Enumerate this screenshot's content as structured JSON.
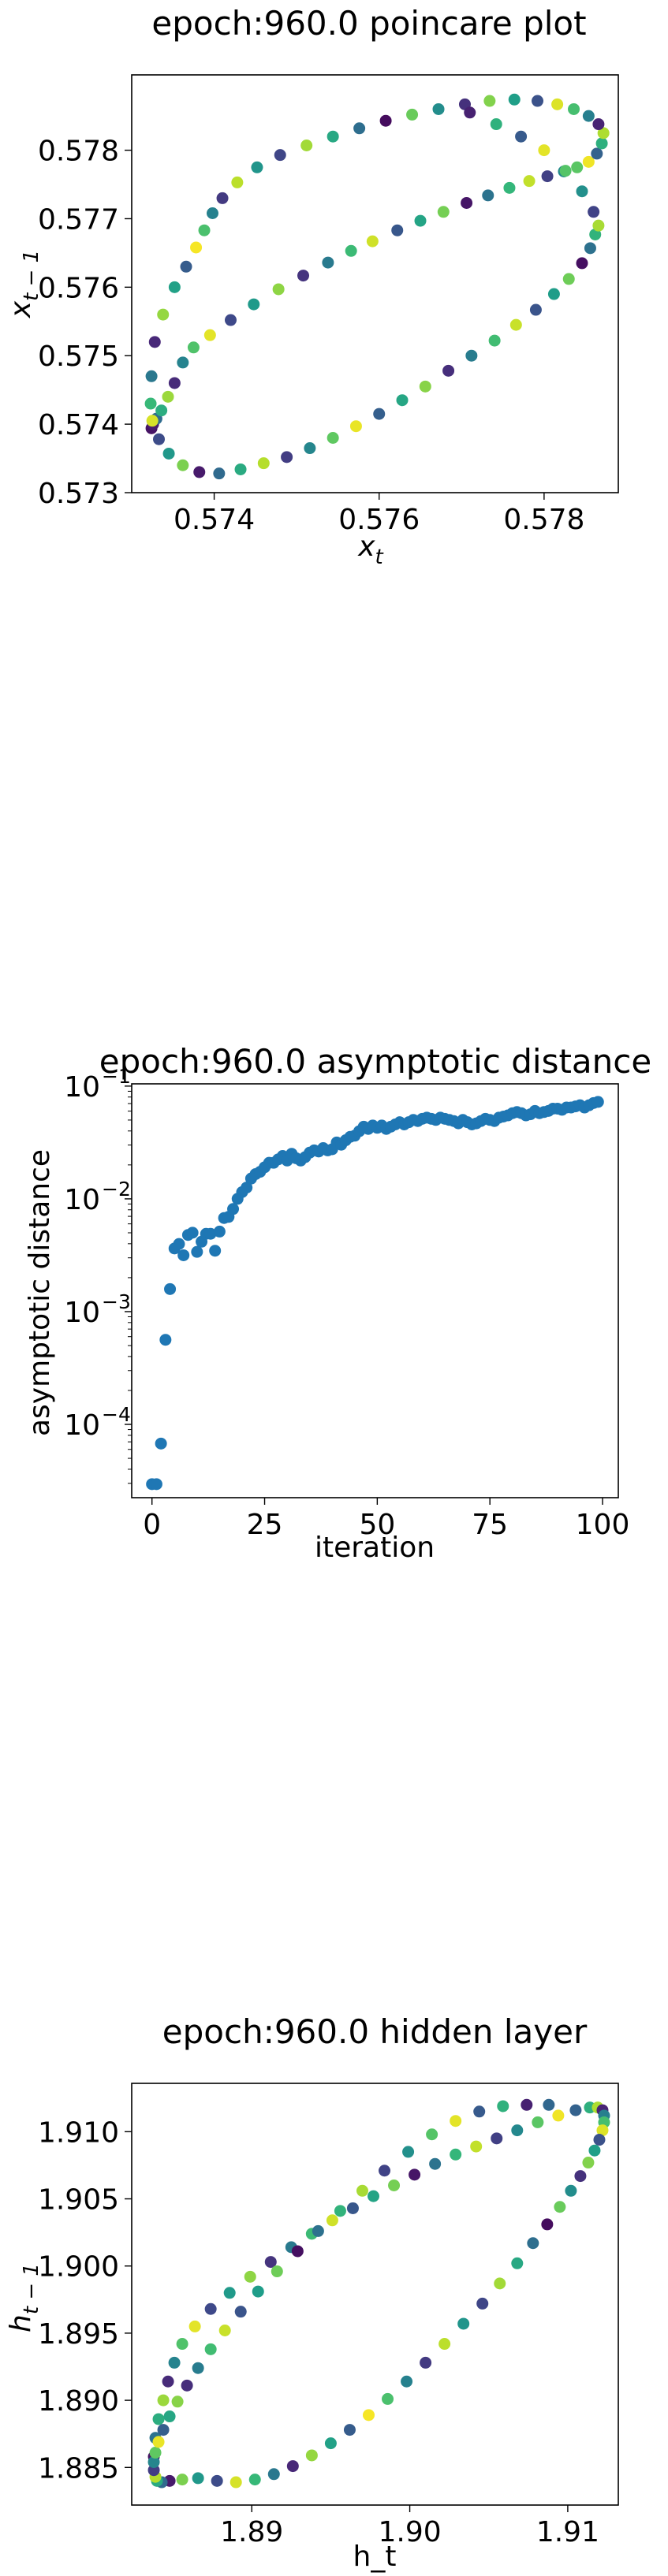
{
  "chart_data": [
    {
      "type": "scatter",
      "title": "epoch:960.0 poincare plot",
      "xlabel": "x_t",
      "ylabel": "x_{t-1}",
      "xlim": [
        0.573,
        0.5789
      ],
      "ylim": [
        0.573,
        0.5791
      ],
      "xticks": [
        0.574,
        0.576,
        0.578
      ],
      "xtick_labels": [
        "0.574",
        "0.576",
        "0.578"
      ],
      "yticks": [
        0.573,
        0.574,
        0.575,
        0.576,
        0.577,
        0.578
      ],
      "ytick_labels": [
        "0.573",
        "0.574",
        "0.575",
        "0.576",
        "0.577",
        "0.578"
      ],
      "grid": false,
      "colormap": "viridis",
      "colors": {
        "low": "#440154",
        "mid": "#21918c",
        "high": "#fde725"
      },
      "series": [
        {
          "x": [
            0.57324,
            0.57326,
            0.5733,
            0.57336,
            0.57344,
            0.57352,
            0.57362,
            0.57375,
            0.57395,
            0.5742,
            0.57448,
            0.57478,
            0.57508,
            0.57538,
            0.57566,
            0.57592,
            0.57622,
            0.5765,
            0.57678,
            0.57706,
            0.57732,
            0.57758,
            0.57782,
            0.57804,
            0.57824,
            0.5784,
            0.57854,
            0.57864,
            0.5787,
            0.57872,
            0.57866,
            0.57854,
            0.57836,
            0.57816,
            0.57792,
            0.57764,
            0.57734,
            0.57704,
            0.57672,
            0.5764,
            0.57608,
            0.57576,
            0.57544,
            0.57512,
            0.5748,
            0.57452,
            0.57428,
            0.5741,
            0.57398,
            0.57388,
            0.57378,
            0.57366,
            0.57352,
            0.57338,
            0.57328,
            0.57324,
            0.57323,
            0.57325,
            0.57333,
            0.57345,
            0.57362,
            0.57382,
            0.57406,
            0.57432,
            0.5746,
            0.57488,
            0.57516,
            0.57544,
            0.57572,
            0.576,
            0.57628,
            0.57656,
            0.57684,
            0.57712,
            0.5774,
            0.57766,
            0.5779,
            0.57812,
            0.5783,
            0.57846,
            0.57856,
            0.57862,
            0.57866,
            0.5786,
            0.57846,
            0.57826,
            0.578,
            0.57772,
            0.57742,
            0.5771
          ],
          "y": [
            0.57394,
            0.574,
            0.57408,
            0.5742,
            0.5744,
            0.5746,
            0.5749,
            0.57512,
            0.5753,
            0.57552,
            0.57575,
            0.57597,
            0.57617,
            0.57636,
            0.57653,
            0.57667,
            0.57683,
            0.57697,
            0.5771,
            0.57723,
            0.57734,
            0.57745,
            0.57755,
            0.57762,
            0.57769,
            0.57775,
            0.57783,
            0.57795,
            0.5781,
            0.57825,
            0.57838,
            0.5785,
            0.5786,
            0.57867,
            0.57872,
            0.57874,
            0.57872,
            0.57867,
            0.5786,
            0.57852,
            0.57843,
            0.57832,
            0.5782,
            0.57807,
            0.57793,
            0.57775,
            0.57753,
            0.5773,
            0.57708,
            0.57683,
            0.57658,
            0.5763,
            0.576,
            0.5756,
            0.5752,
            0.5747,
            0.5743,
            0.57405,
            0.57378,
            0.57357,
            0.5734,
            0.5733,
            0.57328,
            0.57334,
            0.57343,
            0.57352,
            0.57365,
            0.5738,
            0.57397,
            0.57415,
            0.57435,
            0.57455,
            0.57478,
            0.575,
            0.57522,
            0.57545,
            0.57567,
            0.5759,
            0.57612,
            0.57635,
            0.57657,
            0.57677,
            0.5769,
            0.5771,
            0.5774,
            0.5777,
            0.578,
            0.5782,
            0.57838,
            0.57855
          ],
          "c": [
            0.05,
            0.08,
            0.35,
            0.62,
            0.85,
            0.12,
            0.45,
            0.72,
            0.96,
            0.22,
            0.54,
            0.83,
            0.15,
            0.41,
            0.68,
            0.93,
            0.27,
            0.58,
            0.79,
            0.06,
            0.38,
            0.66,
            0.91,
            0.19,
            0.47,
            0.74,
            0.98,
            0.31,
            0.63,
            0.88,
            0.1,
            0.43,
            0.7,
            0.95,
            0.25,
            0.56,
            0.81,
            0.14,
            0.49,
            0.77,
            0.03,
            0.36,
            0.6,
            0.86,
            0.21,
            0.52,
            0.9,
            0.17,
            0.44,
            0.71,
            0.99,
            0.29,
            0.57,
            0.84,
            0.11,
            0.4,
            0.67,
            0.94,
            0.23,
            0.53,
            0.8,
            0.07,
            0.34,
            0.61,
            0.89,
            0.18,
            0.46,
            0.75,
            0.97,
            0.3,
            0.59,
            0.82,
            0.13,
            0.42,
            0.69,
            0.92,
            0.26,
            0.55,
            0.78,
            0.04,
            0.37,
            0.65,
            0.87,
            0.2,
            0.5,
            0.73,
            0.96,
            0.28,
            0.64,
            0.09
          ]
        }
      ]
    },
    {
      "type": "scatter",
      "title": "epoch:960.0 asymptotic distance",
      "xlabel": "iteration",
      "ylabel": "asymptotic distance",
      "yscale": "log",
      "xlim": [
        -4.5,
        103.5
      ],
      "ylim_log10": [
        -4.65,
        -0.98
      ],
      "xticks": [
        0,
        25,
        50,
        75,
        100
      ],
      "xtick_labels": [
        "0",
        "25",
        "50",
        "75",
        "100"
      ],
      "yticks_log10": [
        -4,
        -3,
        -2,
        -1
      ],
      "grid": false,
      "colors": {
        "marker": "#1f77b4"
      },
      "series": [
        {
          "x": [
            0,
            1,
            2,
            3,
            4,
            5,
            6,
            7,
            8,
            9,
            10,
            11,
            12,
            13,
            14,
            15,
            16,
            17,
            18,
            19,
            20,
            21,
            22,
            23,
            24,
            25,
            26,
            27,
            28,
            29,
            30,
            31,
            32,
            33,
            34,
            35,
            36,
            37,
            38,
            39,
            40,
            41,
            42,
            43,
            44,
            45,
            46,
            47,
            48,
            49,
            50,
            51,
            52,
            53,
            54,
            55,
            56,
            57,
            58,
            59,
            60,
            61,
            62,
            63,
            64,
            65,
            66,
            67,
            68,
            69,
            70,
            71,
            72,
            73,
            74,
            75,
            76,
            77,
            78,
            79,
            80,
            81,
            82,
            83,
            84,
            85,
            86,
            87,
            88,
            89,
            90,
            91,
            92,
            93,
            94,
            95,
            96,
            97,
            98,
            99
          ],
          "log10y": [
            -4.53,
            -4.53,
            -4.17,
            -3.25,
            -2.8,
            -2.44,
            -2.4,
            -2.5,
            -2.32,
            -2.3,
            -2.47,
            -2.38,
            -2.31,
            -2.31,
            -2.46,
            -2.29,
            -2.17,
            -2.16,
            -2.09,
            -2.0,
            -1.94,
            -1.9,
            -1.82,
            -1.78,
            -1.76,
            -1.72,
            -1.68,
            -1.68,
            -1.65,
            -1.62,
            -1.66,
            -1.6,
            -1.64,
            -1.66,
            -1.63,
            -1.59,
            -1.57,
            -1.58,
            -1.55,
            -1.57,
            -1.56,
            -1.5,
            -1.52,
            -1.48,
            -1.45,
            -1.44,
            -1.4,
            -1.36,
            -1.38,
            -1.35,
            -1.37,
            -1.35,
            -1.38,
            -1.36,
            -1.34,
            -1.32,
            -1.34,
            -1.32,
            -1.3,
            -1.31,
            -1.29,
            -1.28,
            -1.29,
            -1.3,
            -1.28,
            -1.29,
            -1.3,
            -1.31,
            -1.33,
            -1.3,
            -1.32,
            -1.34,
            -1.33,
            -1.31,
            -1.29,
            -1.3,
            -1.31,
            -1.28,
            -1.27,
            -1.26,
            -1.24,
            -1.23,
            -1.24,
            -1.26,
            -1.25,
            -1.22,
            -1.24,
            -1.23,
            -1.22,
            -1.2,
            -1.2,
            -1.21,
            -1.19,
            -1.19,
            -1.18,
            -1.17,
            -1.19,
            -1.17,
            -1.15,
            -1.14
          ]
        }
      ]
    },
    {
      "type": "scatter",
      "title": "epoch:960.0 hidden layer",
      "xlabel": "h_t",
      "ylabel": "h_{t-1}",
      "xlim": [
        1.8824,
        1.9132
      ],
      "ylim": [
        1.8822,
        1.9136
      ],
      "xticks": [
        1.89,
        1.9,
        1.91
      ],
      "xtick_labels": [
        "1.89",
        "1.90",
        "1.91"
      ],
      "yticks": [
        1.885,
        1.89,
        1.895,
        1.9,
        1.905,
        1.91
      ],
      "ytick_labels": [
        "1.885",
        "1.890",
        "1.895",
        "1.900",
        "1.905",
        "1.910"
      ],
      "grid": false,
      "colormap": "viridis",
      "colors": {
        "low": "#440154",
        "mid": "#21918c",
        "high": "#fde725"
      },
      "series": [
        {
          "x": [
            1.8838,
            1.8839,
            1.8841,
            1.8844,
            1.8847,
            1.8851,
            1.8856,
            1.8864,
            1.8874,
            1.8886,
            1.8899,
            1.8912,
            1.8925,
            1.8938,
            1.8951,
            1.8964,
            1.8977,
            1.899,
            1.9003,
            1.9016,
            1.9029,
            1.9042,
            1.9055,
            1.9068,
            1.9081,
            1.9094,
            1.9105,
            1.9114,
            1.9119,
            1.9122,
            1.9123,
            1.9123,
            1.9122,
            1.912,
            1.9117,
            1.9113,
            1.9108,
            1.9102,
            1.9095,
            1.9087,
            1.9078,
            1.9068,
            1.9057,
            1.9046,
            1.9034,
            1.9022,
            1.901,
            1.8998,
            1.8986,
            1.8974,
            1.8962,
            1.895,
            1.8938,
            1.8926,
            1.8914,
            1.8902,
            1.889,
            1.8878,
            1.8866,
            1.8856,
            1.8848,
            1.8843,
            1.884,
            1.8839,
            1.8838,
            1.8838,
            1.8839,
            1.8841,
            1.8844,
            1.8848,
            1.8853,
            1.8859,
            1.8866,
            1.8874,
            1.8883,
            1.8893,
            1.8904,
            1.8916,
            1.8929,
            1.8942,
            1.8956,
            1.897,
            1.8984,
            1.8999,
            1.9014,
            1.9029,
            1.9044,
            1.9059,
            1.9074,
            1.9088
          ],
          "y": [
            1.8858,
            1.8872,
            1.8886,
            1.89,
            1.8914,
            1.8928,
            1.8942,
            1.8955,
            1.8968,
            1.898,
            1.8992,
            1.9003,
            1.9014,
            1.9024,
            1.9034,
            1.9043,
            1.9052,
            1.906,
            1.9068,
            1.9076,
            1.9083,
            1.9089,
            1.9095,
            1.9101,
            1.9107,
            1.9112,
            1.9116,
            1.9118,
            1.9118,
            1.9116,
            1.9112,
            1.9107,
            1.9101,
            1.9094,
            1.9086,
            1.9077,
            1.9067,
            1.9056,
            1.9044,
            1.9031,
            1.9017,
            1.9002,
            1.8987,
            1.8972,
            1.8957,
            1.8942,
            1.8928,
            1.8914,
            1.8901,
            1.8889,
            1.8878,
            1.8868,
            1.8859,
            1.8851,
            1.8845,
            1.8841,
            1.8839,
            1.884,
            1.8842,
            1.8841,
            1.884,
            1.8839,
            1.884,
            1.8843,
            1.8848,
            1.8854,
            1.8861,
            1.8869,
            1.8878,
            1.8888,
            1.8899,
            1.8911,
            1.8924,
            1.8938,
            1.8952,
            1.8966,
            1.8981,
            1.8996,
            1.9011,
            1.9026,
            1.9041,
            1.9056,
            1.9071,
            1.9085,
            1.9098,
            1.9108,
            1.9115,
            1.9119,
            1.912,
            1.912
          ],
          "c": [
            0.05,
            0.38,
            0.62,
            0.85,
            0.12,
            0.45,
            0.72,
            0.96,
            0.22,
            0.54,
            0.83,
            0.15,
            0.41,
            0.68,
            0.93,
            0.27,
            0.58,
            0.79,
            0.06,
            0.38,
            0.66,
            0.91,
            0.19,
            0.47,
            0.74,
            0.98,
            0.31,
            0.63,
            0.88,
            0.1,
            0.43,
            0.7,
            0.95,
            0.25,
            0.56,
            0.81,
            0.14,
            0.49,
            0.77,
            0.03,
            0.36,
            0.6,
            0.86,
            0.21,
            0.52,
            0.9,
            0.17,
            0.44,
            0.71,
            0.99,
            0.29,
            0.57,
            0.84,
            0.11,
            0.4,
            0.67,
            0.94,
            0.23,
            0.53,
            0.8,
            0.07,
            0.34,
            0.61,
            0.89,
            0.18,
            0.46,
            0.75,
            0.97,
            0.3,
            0.59,
            0.82,
            0.13,
            0.42,
            0.69,
            0.92,
            0.26,
            0.55,
            0.78,
            0.04,
            0.37,
            0.65,
            0.87,
            0.2,
            0.5,
            0.73,
            0.96,
            0.28,
            0.64,
            0.09,
            0.33
          ]
        }
      ]
    }
  ]
}
